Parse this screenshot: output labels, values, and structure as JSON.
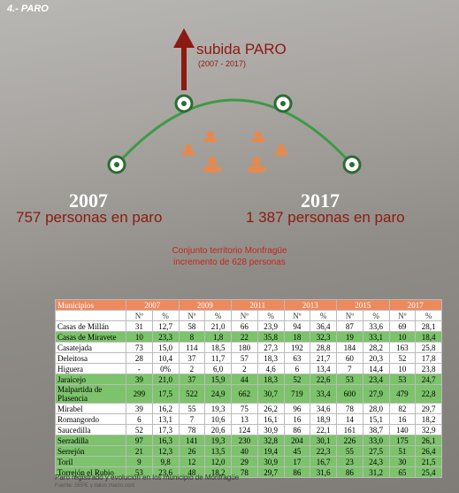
{
  "section": "4.- PARO",
  "headline": {
    "title": "subida PARO",
    "period": "(2007 - 2017)"
  },
  "left": {
    "year": "2007",
    "text": "757 personas en paro"
  },
  "right": {
    "year": "2017",
    "text": "1 387 personas en paro"
  },
  "summary": {
    "line1": "Conjunto territorio Monfragüe",
    "line2": "incremento de 628 personas"
  },
  "table": {
    "header": [
      "Municipios",
      "2007",
      "2009",
      "2011",
      "2013",
      "2015",
      "2017"
    ],
    "subheader": [
      "Nº",
      "%"
    ],
    "rows": [
      {
        "color": "#ffffff",
        "cells": [
          "Casas de Millán",
          "31",
          "12,7",
          "58",
          "21,0",
          "66",
          "23,9",
          "94",
          "36,4",
          "87",
          "33,6",
          "69",
          "28,1"
        ]
      },
      {
        "color": "#7cc36b",
        "cells": [
          "Casas de Miravete",
          "10",
          "23,3",
          "8",
          "1,8",
          "22",
          "35,8",
          "18",
          "32,3",
          "19",
          "33,1",
          "10",
          "18,4"
        ]
      },
      {
        "color": "#ffffff",
        "cells": [
          "Casatejada",
          "73",
          "15,0",
          "114",
          "18,5",
          "180",
          "27,3",
          "192",
          "28,8",
          "184",
          "28,2",
          "163",
          "25,8"
        ]
      },
      {
        "color": "#ffffff",
        "cells": [
          "Deleitosa",
          "28",
          "10,4",
          "37",
          "11,7",
          "57",
          "18,3",
          "63",
          "21,7",
          "60",
          "20,3",
          "52",
          "17,8"
        ]
      },
      {
        "color": "#ffffff",
        "cells": [
          "Higuera",
          "-",
          "0%",
          "2",
          "6,0",
          "2",
          "4,6",
          "6",
          "13,4",
          "7",
          "14,4",
          "10",
          "23,8"
        ]
      },
      {
        "color": "#7cc36b",
        "cells": [
          "Jaraicejo",
          "39",
          "21,0",
          "37",
          "15,9",
          "44",
          "18,3",
          "52",
          "22,6",
          "53",
          "23,4",
          "53",
          "24,7"
        ]
      },
      {
        "color": "#7cc36b",
        "cells": [
          "Malpartida de Plasencia",
          "299",
          "17,5",
          "522",
          "24,9",
          "662",
          "30,7",
          "719",
          "33,4",
          "600",
          "27,9",
          "479",
          "22,8"
        ]
      },
      {
        "color": "#ffffff",
        "cells": [
          "Mirabel",
          "39",
          "16,2",
          "55",
          "19,3",
          "75",
          "26,2",
          "96",
          "34,6",
          "78",
          "28,0",
          "82",
          "29,7"
        ]
      },
      {
        "color": "#ffffff",
        "cells": [
          "Romangordo",
          "6",
          "13,1",
          "7",
          "10,6",
          "13",
          "16,1",
          "16",
          "18,9",
          "14",
          "15,1",
          "16",
          "18,2"
        ]
      },
      {
        "color": "#ffffff",
        "cells": [
          "Saucedilla",
          "52",
          "17,3",
          "78",
          "20,6",
          "124",
          "30,9",
          "86",
          "22,1",
          "161",
          "38,7",
          "140",
          "32,9"
        ]
      },
      {
        "color": "#7cc36b",
        "cells": [
          "Serradilla",
          "97",
          "16,3",
          "141",
          "19,3",
          "230",
          "32,8",
          "204",
          "30,1",
          "226",
          "33,0",
          "175",
          "26,1"
        ]
      },
      {
        "color": "#7cc36b",
        "cells": [
          "Serrejón",
          "21",
          "12,3",
          "26",
          "13,5",
          "40",
          "19,4",
          "45",
          "22,3",
          "55",
          "27,5",
          "51",
          "26,4"
        ]
      },
      {
        "color": "#7cc36b",
        "cells": [
          "Toril",
          "9",
          "9,8",
          "12",
          "12,0",
          "29",
          "30,9",
          "17",
          "16,7",
          "23",
          "24,3",
          "30",
          "21,5"
        ]
      },
      {
        "color": "#7cc36b",
        "cells": [
          "Torrejón el Rubio",
          "53",
          "23,6",
          "48",
          "18,2",
          "78",
          "29,7",
          "86",
          "31,6",
          "86",
          "31,2",
          "65",
          "25,4"
        ]
      }
    ],
    "caption": "Paro registrado y evolución en los municipio de Monfragüe",
    "source": "Fuente: SEPE y datos macro.com"
  }
}
